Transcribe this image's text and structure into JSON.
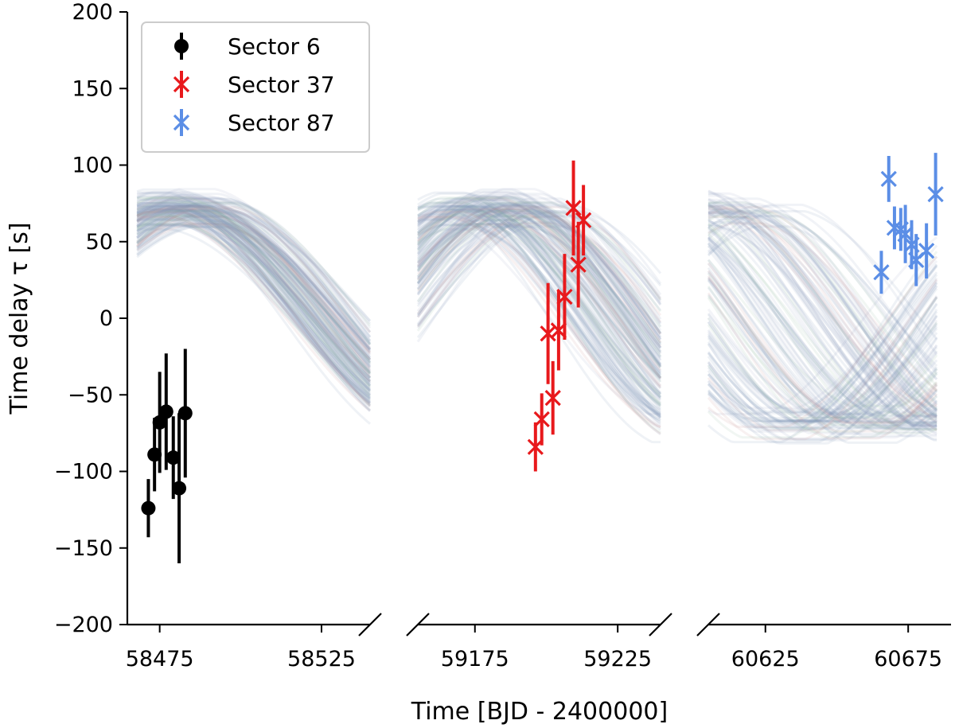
{
  "chart_data": {
    "type": "scatter",
    "xlabel": "Time [BJD - 2400000]",
    "ylabel": "Time delay τ [s]",
    "ylim": [
      -200,
      200
    ],
    "yticks": [
      "200",
      "150",
      "100",
      "50",
      "0",
      "−50",
      "−100",
      "−150",
      "−200"
    ],
    "ytick_values": [
      200,
      150,
      100,
      50,
      0,
      -50,
      -100,
      -150,
      -200
    ],
    "legend_placement": "top-left",
    "grid": false,
    "broken_x_axis": true,
    "model_curves": "many semi-transparent sinusoidal posterior model draws (mostly blue-grey, some red/green) spanning roughly −80 to +80 s",
    "panels": [
      {
        "xlim": [
          58465,
          58540
        ],
        "xticks": [
          58475,
          58525
        ],
        "xtick_labels": [
          "58475",
          "58525"
        ]
      },
      {
        "xlim": [
          59155,
          59240
        ],
        "xticks": [
          59175,
          59225
        ],
        "xtick_labels": [
          "59175",
          "59225"
        ]
      },
      {
        "xlim": [
          60605,
          60690
        ],
        "xticks": [
          60625,
          60675
        ],
        "xtick_labels": [
          "60625",
          "60675"
        ]
      }
    ],
    "series": [
      {
        "name": "Sector 6",
        "marker": "o",
        "color": "#000000",
        "panel": 0,
        "points": [
          {
            "x": 58471.5,
            "y": -124,
            "err": 19
          },
          {
            "x": 58473.4,
            "y": -89,
            "err": 24
          },
          {
            "x": 58475.0,
            "y": -68,
            "err": 33
          },
          {
            "x": 58477.0,
            "y": -61,
            "err": 38
          },
          {
            "x": 58479.2,
            "y": -91,
            "err": 27
          },
          {
            "x": 58481.0,
            "y": -111,
            "err": 49
          },
          {
            "x": 58482.9,
            "y": -62,
            "err": 42
          }
        ]
      },
      {
        "name": "Sector 37",
        "marker": "x",
        "color": "#e8191c",
        "panel": 1,
        "points": [
          {
            "x": 59196.2,
            "y": -84,
            "err": 16
          },
          {
            "x": 59198.4,
            "y": -66,
            "err": 17
          },
          {
            "x": 59200.6,
            "y": -10,
            "err": 33
          },
          {
            "x": 59202.3,
            "y": -52,
            "err": 24
          },
          {
            "x": 59204.3,
            "y": -8,
            "err": 26
          },
          {
            "x": 59206.4,
            "y": 14,
            "err": 28
          },
          {
            "x": 59209.5,
            "y": 72,
            "err": 31
          },
          {
            "x": 59211.2,
            "y": 35,
            "err": 28
          },
          {
            "x": 59213.0,
            "y": 64,
            "err": 23
          }
        ]
      },
      {
        "name": "Sector 87",
        "marker": "x",
        "color": "#5b8ee6",
        "panel": 2,
        "points": [
          {
            "x": 60665.6,
            "y": 30,
            "err": 14
          },
          {
            "x": 60668.2,
            "y": 91,
            "err": 15
          },
          {
            "x": 60670.2,
            "y": 59,
            "err": 14
          },
          {
            "x": 60672.4,
            "y": 58,
            "err": 14
          },
          {
            "x": 60674.0,
            "y": 55,
            "err": 19
          },
          {
            "x": 60676.2,
            "y": 48,
            "err": 16
          },
          {
            "x": 60677.8,
            "y": 38,
            "err": 17
          },
          {
            "x": 60681.4,
            "y": 44,
            "err": 18
          },
          {
            "x": 60684.6,
            "y": 81,
            "err": 27
          }
        ]
      }
    ]
  }
}
